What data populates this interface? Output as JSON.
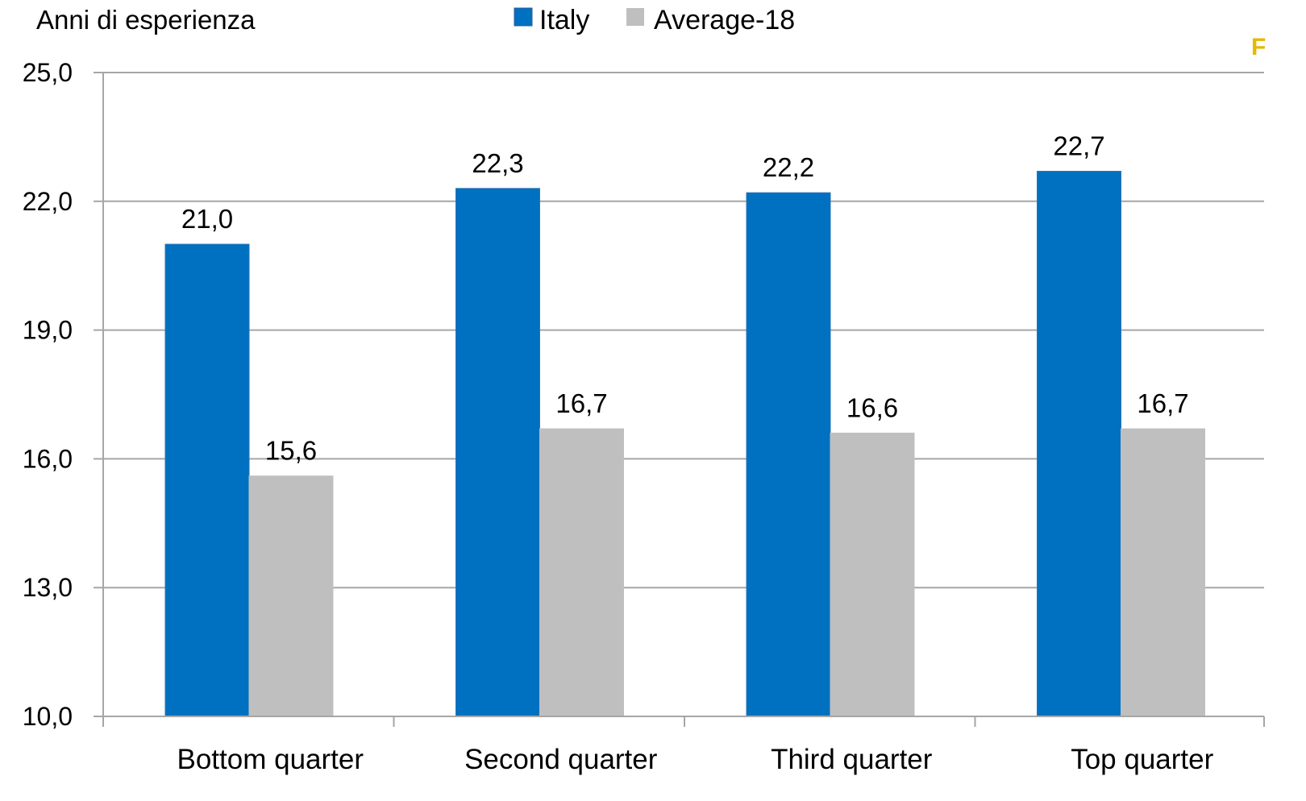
{
  "chart_data": {
    "type": "bar",
    "title": "",
    "ylabel": "Anni di esperienza",
    "xlabel": "",
    "categories": [
      "Bottom quarter",
      "Second quarter",
      "Third quarter",
      "Top quarter"
    ],
    "series": [
      {
        "name": "Italy",
        "color": "#0070C0",
        "values": [
          21.0,
          22.3,
          22.2,
          22.7
        ],
        "labels": [
          "21,0",
          "22,3",
          "22,2",
          "22,7"
        ]
      },
      {
        "name": "Average-18",
        "color": "#BFBFBF",
        "values": [
          15.6,
          16.7,
          16.6,
          16.7
        ],
        "labels": [
          "15,6",
          "16,7",
          "16,6",
          "16,7"
        ]
      }
    ],
    "ylim": [
      10,
      25
    ],
    "yticks": [
      10,
      13,
      16,
      19,
      22,
      25
    ],
    "ytick_labels": [
      "10,0",
      "13,0",
      "16,0",
      "19,0",
      "22,0",
      "25,0"
    ],
    "grid": true,
    "legend_position": "top-center",
    "gridline_color": "#A6A6A6",
    "corner_mark": {
      "text": "F",
      "color": "#E6B800"
    }
  }
}
